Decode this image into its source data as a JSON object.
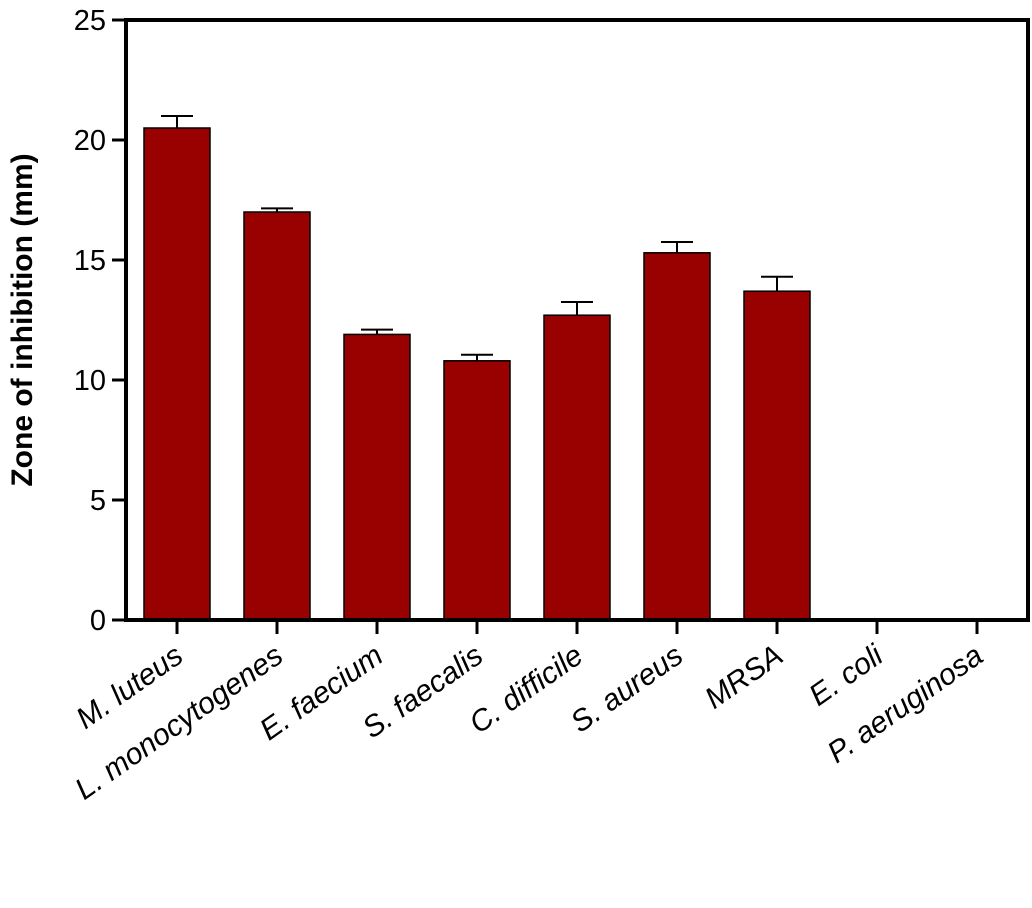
{
  "chart_data": {
    "type": "bar",
    "title": "",
    "xlabel": "",
    "ylabel": "Zone of inhibition (mm)",
    "ylim": [
      0,
      25
    ],
    "yticks": [
      0,
      5,
      10,
      15,
      20,
      25
    ],
    "grid": false,
    "categories": [
      "M. luteus",
      "L. monocytogenes",
      "E. faecium",
      "S. faecalis",
      "C. difficile",
      "S. aureus",
      "MRSA",
      "E. coli",
      "P. aeruginosa"
    ],
    "values": [
      20.5,
      17.0,
      11.9,
      10.8,
      12.7,
      15.3,
      13.7,
      0,
      0
    ],
    "errors": [
      0.5,
      0.15,
      0.2,
      0.25,
      0.55,
      0.45,
      0.6,
      0,
      0
    ],
    "bar_color": "#990000"
  }
}
